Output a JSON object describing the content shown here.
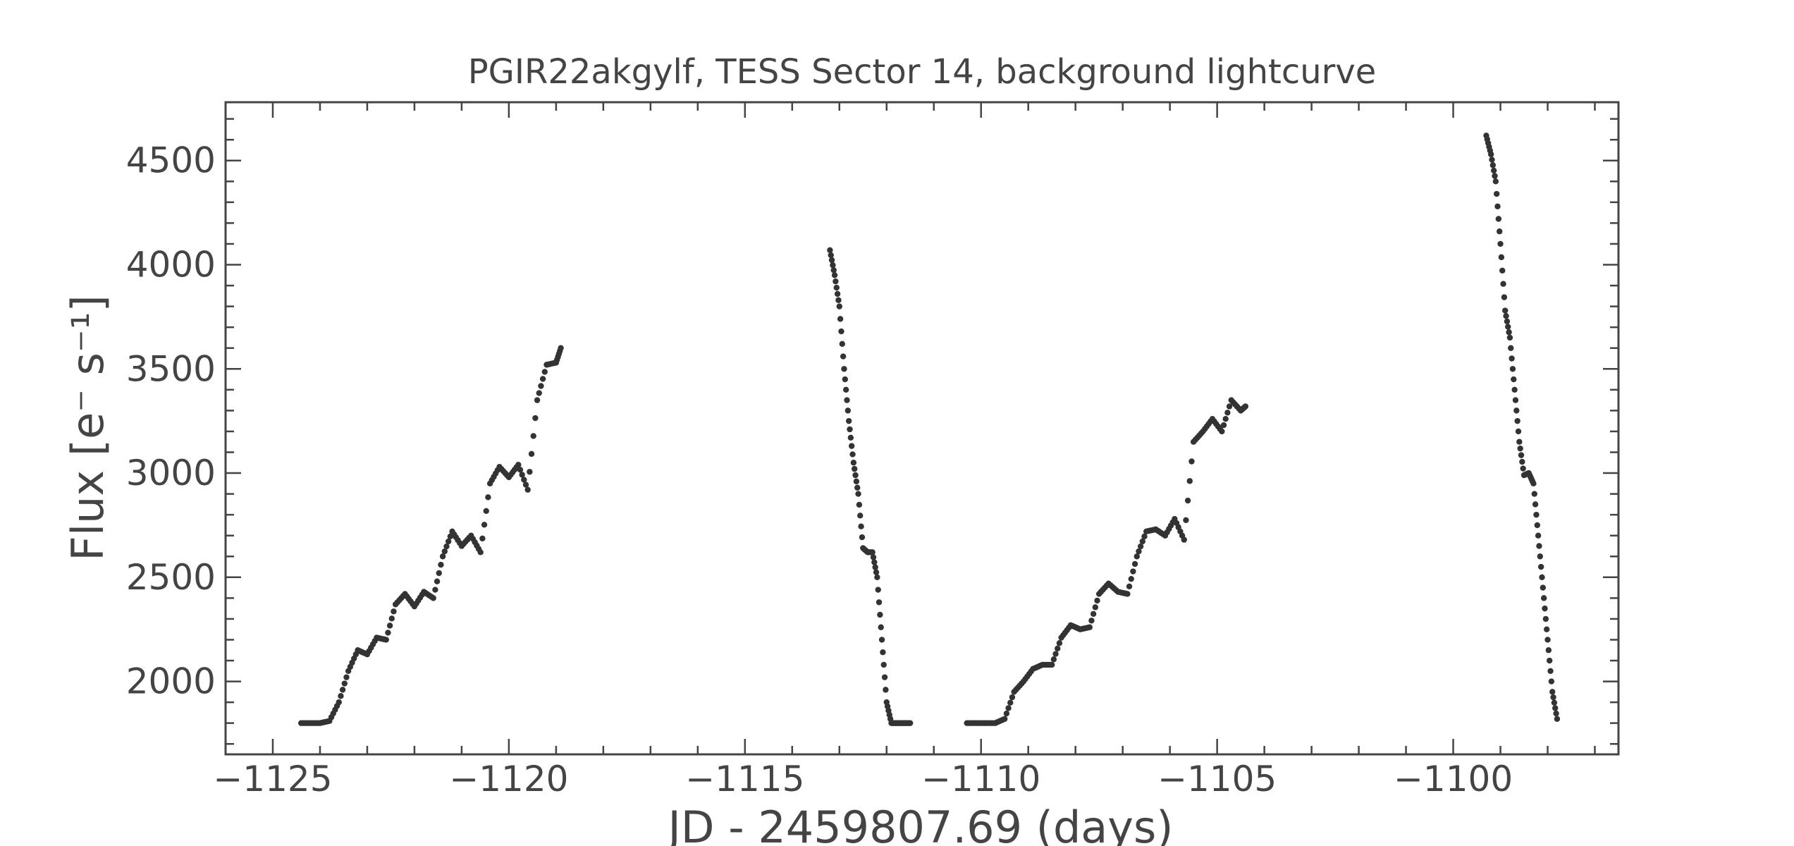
{
  "chart_data": {
    "type": "scatter",
    "title": "PGIR22akgylf, TESS Sector 14, background lightcurve",
    "xlabel": "JD - 2459807.69 (days)",
    "ylabel": "Flux [e⁻ s⁻¹]",
    "xlim": [
      -1126,
      -1096.5
    ],
    "ylim": [
      1650,
      4780
    ],
    "x_ticks": [
      -1125,
      -1120,
      -1115,
      -1110,
      -1105,
      -1100
    ],
    "x_tick_labels": [
      "−1125",
      "−1120",
      "−1115",
      "−1110",
      "−1105",
      "−1100"
    ],
    "y_ticks": [
      2000,
      2500,
      3000,
      3500,
      4000,
      4500
    ],
    "y_tick_labels": [
      "2000",
      "2500",
      "3000",
      "3500",
      "4000",
      "4500"
    ],
    "grid": false,
    "marker_color": "#333333",
    "series": [
      {
        "x": [
          -1124.4,
          -1124.2,
          -1124.0,
          -1123.8,
          -1123.6,
          -1123.4,
          -1123.2,
          -1123.0,
          -1122.8,
          -1122.6,
          -1122.4,
          -1122.2,
          -1122.0,
          -1121.8,
          -1121.6,
          -1121.4,
          -1121.2,
          -1121.0,
          -1120.8,
          -1120.6,
          -1120.4,
          -1120.2,
          -1120.0,
          -1119.8,
          -1119.6,
          -1119.4,
          -1119.2,
          -1119.0,
          -1118.9
        ],
        "y": [
          1800,
          1800,
          1800,
          1810,
          1900,
          2050,
          2150,
          2130,
          2210,
          2200,
          2370,
          2420,
          2360,
          2430,
          2400,
          2600,
          2720,
          2650,
          2700,
          2620,
          2950,
          3030,
          2980,
          3040,
          2920,
          3350,
          3520,
          3530,
          3600
        ]
      },
      {
        "x": [
          -1113.2,
          -1113.1,
          -1113.0,
          -1112.9,
          -1112.8,
          -1112.7,
          -1112.6,
          -1112.5,
          -1112.4,
          -1112.3,
          -1112.2,
          -1112.1,
          -1112.0,
          -1111.9,
          -1111.8,
          -1111.7,
          -1111.6,
          -1111.5
        ],
        "y": [
          4070,
          3950,
          3800,
          3500,
          3250,
          3050,
          2900,
          2640,
          2620,
          2620,
          2500,
          2200,
          1900,
          1800,
          1800,
          1800,
          1800,
          1800
        ]
      },
      {
        "x": [
          -1110.3,
          -1110.1,
          -1109.9,
          -1109.7,
          -1109.5,
          -1109.3,
          -1109.1,
          -1108.9,
          -1108.7,
          -1108.5,
          -1108.3,
          -1108.1,
          -1107.9,
          -1107.7,
          -1107.5,
          -1107.3,
          -1107.1,
          -1106.9,
          -1106.7,
          -1106.5,
          -1106.3,
          -1106.1,
          -1105.9,
          -1105.7,
          -1105.5,
          -1105.3,
          -1105.1,
          -1104.9,
          -1104.7,
          -1104.5,
          -1104.4
        ],
        "y": [
          1800,
          1800,
          1800,
          1800,
          1820,
          1950,
          2000,
          2060,
          2080,
          2080,
          2210,
          2270,
          2250,
          2260,
          2420,
          2470,
          2430,
          2420,
          2600,
          2720,
          2730,
          2700,
          2780,
          2680,
          3150,
          3200,
          3260,
          3200,
          3350,
          3300,
          3320
        ]
      },
      {
        "x": [
          -1099.3,
          -1099.2,
          -1099.1,
          -1099.0,
          -1098.9,
          -1098.8,
          -1098.7,
          -1098.6,
          -1098.5,
          -1098.4,
          -1098.3,
          -1098.2,
          -1098.1,
          -1098.0,
          -1097.9,
          -1097.8
        ],
        "y": [
          4620,
          4530,
          4400,
          4100,
          3780,
          3650,
          3400,
          3150,
          2990,
          3000,
          2950,
          2700,
          2450,
          2200,
          1950,
          1820
        ]
      }
    ]
  }
}
